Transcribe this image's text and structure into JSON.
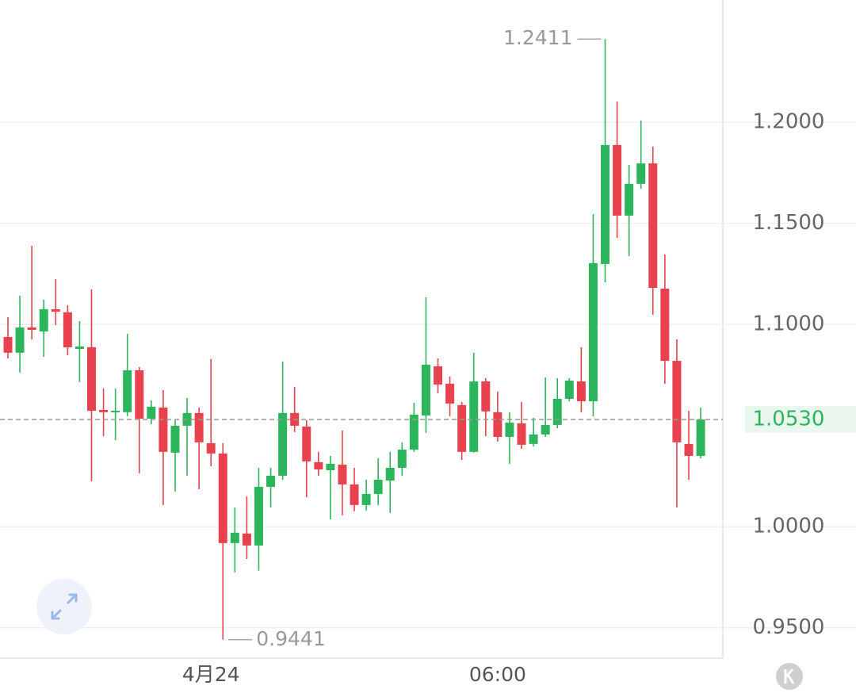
{
  "chart_data": {
    "type": "candlestick",
    "categories": [
      null,
      null,
      null,
      null,
      null,
      null,
      null,
      null,
      null,
      null,
      null,
      null,
      null,
      null,
      null,
      null,
      null,
      "4月24",
      null,
      null,
      null,
      null,
      null,
      null,
      null,
      null,
      null,
      null,
      null,
      null,
      null,
      null,
      null,
      null,
      null,
      null,
      null,
      null,
      null,
      null,
      null,
      "06:00",
      null,
      null,
      null,
      null,
      null,
      null,
      null,
      null,
      null,
      null,
      null,
      null,
      null,
      null,
      null,
      null,
      null
    ],
    "open": [
      1.0938,
      1.086,
      1.0985,
      1.0965,
      1.1075,
      1.106,
      1.0879,
      1.0887,
      1.0577,
      1.0566,
      1.0566,
      1.0773,
      1.0534,
      1.0589,
      1.0366,
      1.0499,
      1.0562,
      1.0413,
      1.0362,
      0.9919,
      0.9966,
      0.9907,
      1.0197,
      1.0252,
      1.0562,
      1.0495,
      1.0319,
      1.0279,
      1.0307,
      1.0209,
      1.0107,
      1.0162,
      1.0228,
      1.0291,
      1.0381,
      1.055,
      1.0793,
      1.0707,
      1.0601,
      1.037,
      1.0718,
      1.0566,
      1.0444,
      1.0511,
      1.0409,
      1.0456,
      1.0503,
      1.0632,
      1.0718,
      1.062,
      1.1299,
      1.1887,
      1.1538,
      1.1695,
      1.1796,
      1.1177,
      1.082,
      1.0409,
      1.035
    ],
    "high": [
      1.1036,
      1.1142,
      1.1389,
      1.1122,
      1.1224,
      1.1095,
      1.1016,
      1.1173,
      1.0683,
      1.0683,
      1.0954,
      1.0789,
      1.0624,
      1.0675,
      1.0526,
      1.0636,
      1.0589,
      1.0828,
      1.0413,
      1.0095,
      1.015,
      1.0291,
      1.0291,
      1.0816,
      1.0691,
      1.0526,
      1.037,
      1.035,
      1.0475,
      1.0291,
      1.0232,
      1.0338,
      1.037,
      1.0417,
      1.0613,
      1.1134,
      1.0832,
      1.0742,
      1.0617,
      1.086,
      1.0734,
      1.0668,
      1.0566,
      1.0617,
      1.0538,
      1.0738,
      1.0734,
      1.0734,
      1.0887,
      1.1546,
      1.2411,
      1.2102,
      1.1789,
      1.2008,
      1.1879,
      1.1346,
      1.0926,
      1.0573,
      1.0589
    ],
    "low": [
      1.0832,
      1.0762,
      1.0926,
      1.084,
      1.0997,
      1.0848,
      1.0715,
      1.0225,
      1.0448,
      1.0428,
      1.0546,
      1.0264,
      1.0507,
      1.0107,
      1.0174,
      1.0252,
      1.0185,
      1.0299,
      0.9441,
      0.9774,
      0.984,
      0.9782,
      1.0095,
      1.0232,
      1.0468,
      1.0146,
      1.0252,
      1.0036,
      1.0056,
      1.0076,
      1.008,
      1.0107,
      1.0068,
      1.0252,
      1.037,
      1.0464,
      1.066,
      1.0546,
      1.033,
      1.0366,
      1.0448,
      1.0421,
      1.0311,
      1.0385,
      1.0397,
      1.0444,
      1.0487,
      1.062,
      1.0566,
      1.0546,
      1.1208,
      1.1428,
      1.1338,
      1.1671,
      1.1048,
      1.0707,
      1.0095,
      1.0232,
      1.0338
    ],
    "close": [
      1.086,
      1.0985,
      1.0973,
      1.1075,
      1.1063,
      1.0887,
      1.0891,
      1.0573,
      1.0566,
      1.0573,
      1.0773,
      1.0534,
      1.0593,
      1.037,
      1.0499,
      1.0562,
      1.0417,
      1.0362,
      0.9919,
      0.997,
      0.9907,
      1.0197,
      1.0252,
      1.0562,
      1.0499,
      1.0323,
      1.0283,
      1.0311,
      1.0209,
      1.0107,
      1.0162,
      1.0232,
      1.0291,
      1.0381,
      1.0554,
      1.0801,
      1.0703,
      1.0609,
      1.037,
      1.0718,
      1.057,
      1.0444,
      1.0515,
      1.0405,
      1.0456,
      1.0503,
      1.0632,
      1.0722,
      1.062,
      1.1303,
      1.1887,
      1.1538,
      1.1695,
      1.1796,
      1.1181,
      1.082,
      1.0417,
      1.035,
      1.053
    ],
    "up_color": "#2db55d",
    "down_color": "#e8424f",
    "ylim": [
      0.935,
      1.2604
    ],
    "yticks": [
      {
        "value": 0.95,
        "label": "0.9500"
      },
      {
        "value": 1.0,
        "label": "1.0000"
      },
      {
        "value": 1.1,
        "label": "1.1000"
      },
      {
        "value": 1.15,
        "label": "1.1500"
      },
      {
        "value": 1.2,
        "label": "1.2000"
      }
    ],
    "grid": true,
    "last_price": {
      "value": 1.053,
      "label": "1.0530"
    },
    "high_index": 50,
    "low_index": 18
  }
}
